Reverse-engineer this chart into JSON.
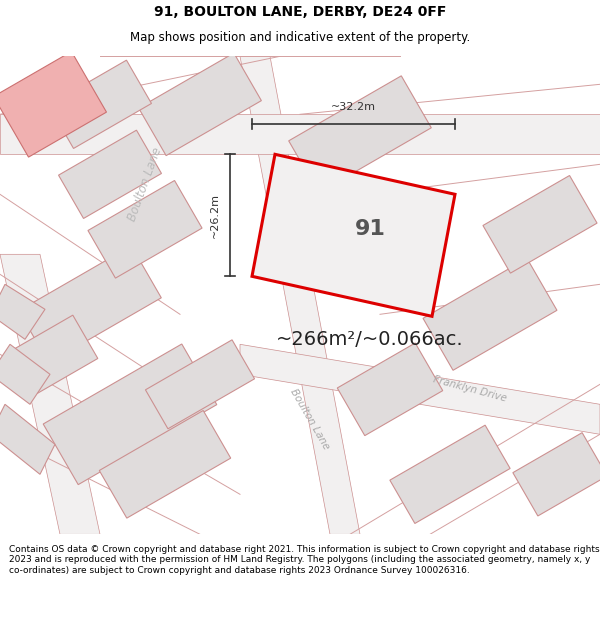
{
  "title": "91, BOULTON LANE, DERBY, DE24 0FF",
  "subtitle": "Map shows position and indicative extent of the property.",
  "footer": "Contains OS data © Crown copyright and database right 2021. This information is subject to Crown copyright and database rights 2023 and is reproduced with the permission of HM Land Registry. The polygons (including the associated geometry, namely x, y co-ordinates) are subject to Crown copyright and database rights 2023 Ordnance Survey 100026316.",
  "area_text": "~266m²/~0.066ac.",
  "width_label": "~32.2m",
  "height_label": "~26.2m",
  "plot_number": "91",
  "map_bg": "#f2f0f0",
  "plot_fill": "#f2f0f0",
  "plot_edge_color": "#dd0000",
  "bldg_fill": "#e0dcdc",
  "bldg_edge": "#cc9090",
  "pink_fill": "#f0b0b0",
  "pink_edge": "#cc7070",
  "road_fill": "#e8e4e4",
  "label_color": "#aaaaaa",
  "dim_color": "#333333",
  "title_fontsize": 10,
  "subtitle_fontsize": 8.5,
  "footer_fontsize": 6.5,
  "area_fontsize": 14,
  "plot_num_fontsize": 16,
  "dim_label_fontsize": 8,
  "road_label_fontsize": 7.5
}
